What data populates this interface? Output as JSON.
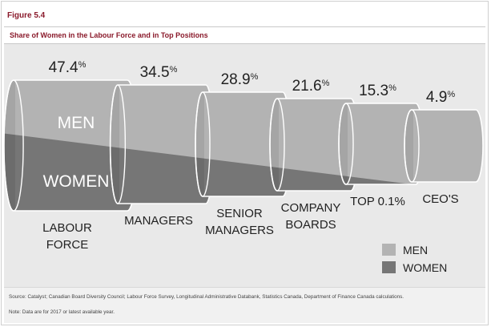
{
  "figure_label": "Figure 5.4",
  "chart_data": {
    "type": "bar",
    "title": "Share of Women in the Labour Force and in Top Positions",
    "categories": [
      [
        "LABOUR",
        "FORCE"
      ],
      [
        "MANAGERS"
      ],
      [
        "SENIOR",
        "MANAGERS"
      ],
      [
        "COMPANY",
        "BOARDS"
      ],
      [
        "TOP 0.1%"
      ],
      [
        "CEO'S"
      ]
    ],
    "values": [
      47.4,
      34.5,
      28.9,
      21.6,
      15.3,
      4.9
    ],
    "value_labels": [
      "47.4%",
      "34.5%",
      "28.9%",
      "21.6%",
      "15.3%",
      "4.9%"
    ],
    "unit": "%",
    "series": [
      {
        "name": "MEN",
        "color": "#b3b3b3"
      },
      {
        "name": "WOMEN",
        "color": "#767676"
      }
    ],
    "in_chart_labels": {
      "men": "MEN",
      "women": "WOMEN"
    },
    "legend": {
      "position": "bottom-right",
      "items": [
        "MEN",
        "WOMEN"
      ]
    },
    "grid": false
  },
  "source": {
    "source_text": "Source: Catalyst; Canadian Board Diversity Council; Labour Force Survey, Longitudinal Administrative Databank, Statistics Canada, Department of Finance Canada calculations.",
    "note_text": "Note: Data are for 2017 or latest available year."
  }
}
